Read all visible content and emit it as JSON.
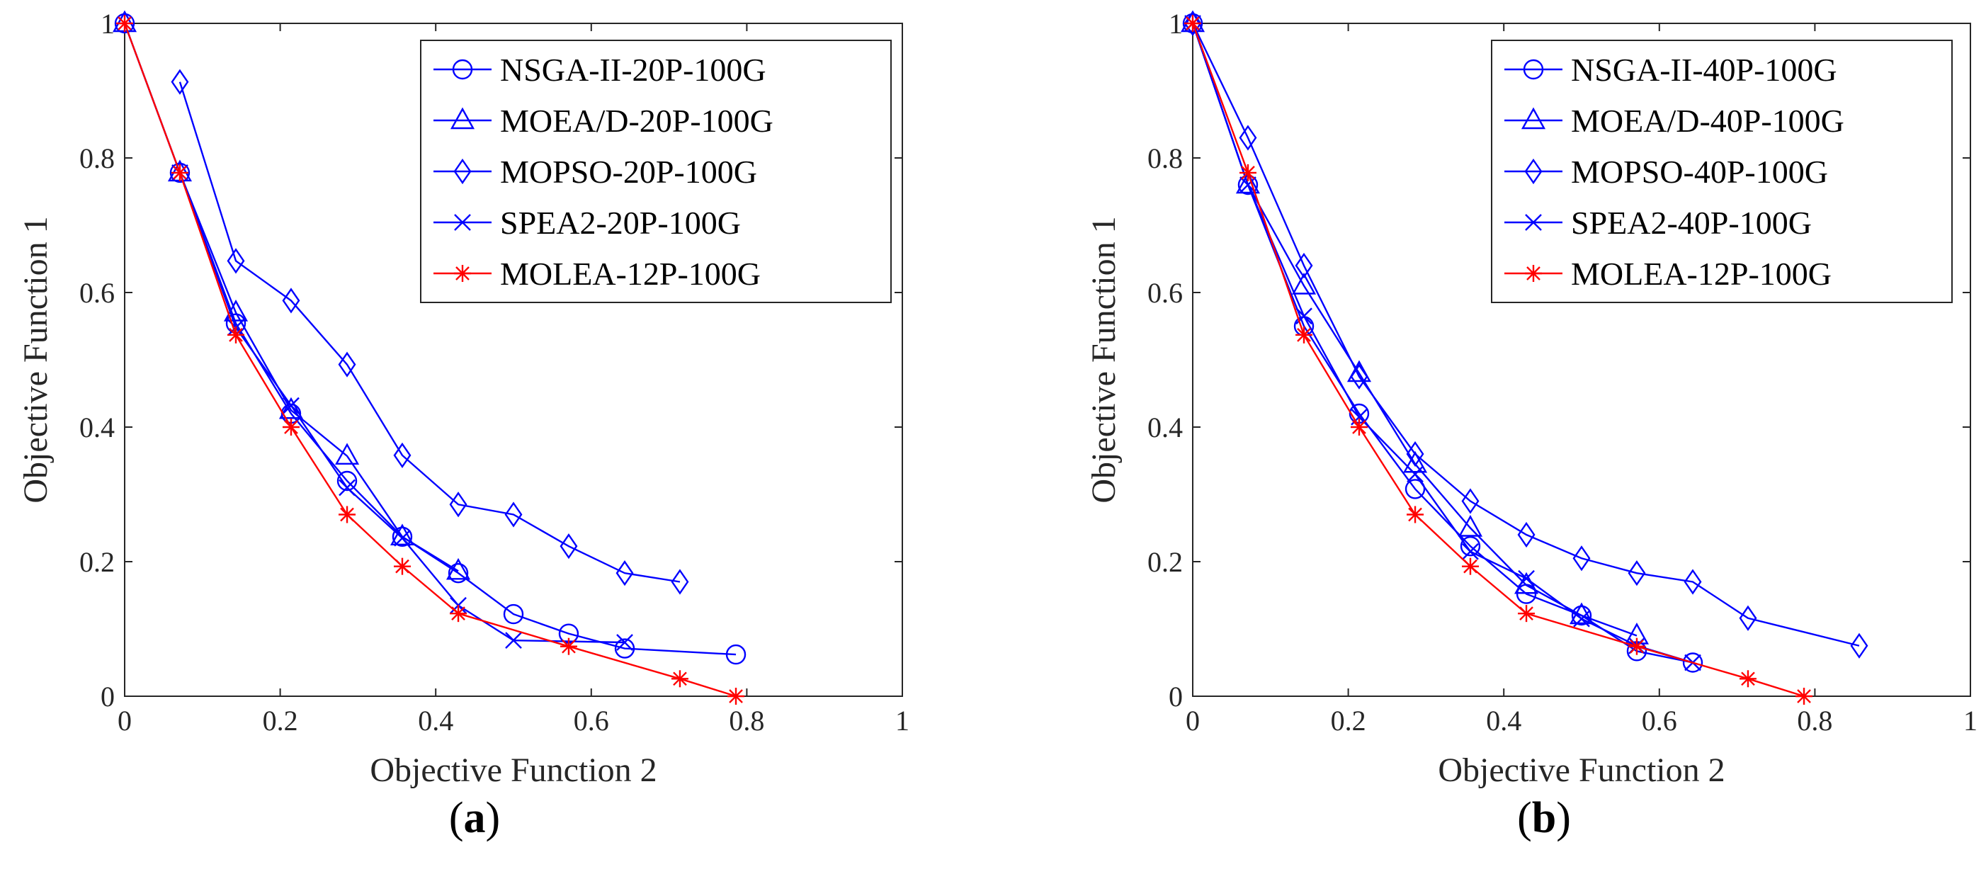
{
  "figure": {
    "colors": {
      "blue": "#0000ff",
      "red": "#ff0000",
      "axis": "#262626"
    }
  },
  "chart_data": [
    {
      "type": "line",
      "caption_label": "a",
      "xlabel": "Objective Function 2",
      "ylabel": "Objective Function 1",
      "xlim": [
        0,
        1
      ],
      "ylim": [
        0,
        1
      ],
      "xticks": [
        0,
        0.2,
        0.4,
        0.6,
        0.8,
        1
      ],
      "yticks": [
        0,
        0.2,
        0.4,
        0.6,
        0.8,
        1
      ],
      "xtick_labels": [
        "0",
        "0.2",
        "0.4",
        "0.6",
        "0.8",
        "1"
      ],
      "ytick_labels": [
        "0",
        "0.2",
        "0.4",
        "0.6",
        "0.8",
        "1"
      ],
      "legend_position": "top-right",
      "series": [
        {
          "name": "NSGA-II-20P-100G",
          "marker": "circle",
          "color": "#0000ff",
          "x": [
            0,
            0.071,
            0.143,
            0.214,
            0.286,
            0.357,
            0.429,
            0.5,
            0.571,
            0.643,
            0.786
          ],
          "y": [
            1,
            0.778,
            0.554,
            0.42,
            0.32,
            0.237,
            0.183,
            0.122,
            0.093,
            0.071,
            0.062
          ]
        },
        {
          "name": "MOEA/D-20P-100G",
          "marker": "triangle",
          "color": "#0000ff",
          "x": [
            0,
            0.071,
            0.143,
            0.214,
            0.286,
            0.357,
            0.429
          ],
          "y": [
            1,
            0.778,
            0.57,
            0.425,
            0.357,
            0.237,
            0.186
          ]
        },
        {
          "name": "MOPSO-20P-100G",
          "marker": "diamond",
          "color": "#0000ff",
          "x": [
            0.071,
            0.143,
            0.214,
            0.286,
            0.357,
            0.429,
            0.5,
            0.571,
            0.643,
            0.714
          ],
          "y": [
            0.913,
            0.647,
            0.588,
            0.493,
            0.358,
            0.285,
            0.27,
            0.223,
            0.183,
            0.17
          ]
        },
        {
          "name": "SPEA2-20P-100G",
          "marker": "x",
          "color": "#0000ff",
          "x": [
            0.071,
            0.143,
            0.214,
            0.286,
            0.357,
            0.429,
            0.5,
            0.643
          ],
          "y": [
            0.778,
            0.548,
            0.432,
            0.31,
            0.235,
            0.135,
            0.083,
            0.08
          ]
        },
        {
          "name": "MOLEA-12P-100G",
          "marker": "asterisk",
          "color": "#ff0000",
          "x": [
            0,
            0.071,
            0.143,
            0.214,
            0.286,
            0.357,
            0.429,
            0.571,
            0.714,
            0.786
          ],
          "y": [
            1,
            0.778,
            0.537,
            0.4,
            0.27,
            0.193,
            0.123,
            0.074,
            0.026,
            0
          ]
        }
      ]
    },
    {
      "type": "line",
      "caption_label": "b",
      "xlabel": "Objective Function 2",
      "ylabel": "Objective Function 1",
      "xlim": [
        0,
        1
      ],
      "ylim": [
        0,
        1
      ],
      "xticks": [
        0,
        0.2,
        0.4,
        0.6,
        0.8,
        1
      ],
      "yticks": [
        0,
        0.2,
        0.4,
        0.6,
        0.8,
        1
      ],
      "xtick_labels": [
        "0",
        "0.2",
        "0.4",
        "0.6",
        "0.8",
        "1"
      ],
      "ytick_labels": [
        "0",
        "0.2",
        "0.4",
        "0.6",
        "0.8",
        "1"
      ],
      "legend_position": "top-right",
      "series": [
        {
          "name": "NSGA-II-40P-100G",
          "marker": "circle",
          "color": "#0000ff",
          "x": [
            0,
            0.071,
            0.143,
            0.214,
            0.286,
            0.357,
            0.429,
            0.5,
            0.571,
            0.643
          ],
          "y": [
            1,
            0.76,
            0.55,
            0.42,
            0.308,
            0.223,
            0.152,
            0.12,
            0.067,
            0.05
          ]
        },
        {
          "name": "MOEA/D-40P-100G",
          "marker": "triangle",
          "color": "#0000ff",
          "x": [
            0,
            0.071,
            0.143,
            0.214,
            0.286,
            0.357,
            0.429,
            0.5,
            0.571
          ],
          "y": [
            1,
            0.76,
            0.61,
            0.48,
            0.345,
            0.25,
            0.165,
            0.12,
            0.09
          ]
        },
        {
          "name": "MOPSO-40P-100G",
          "marker": "diamond",
          "color": "#0000ff",
          "x": [
            0,
            0.071,
            0.143,
            0.214,
            0.286,
            0.357,
            0.429,
            0.5,
            0.571,
            0.643,
            0.714,
            0.857
          ],
          "y": [
            1,
            0.83,
            0.64,
            0.475,
            0.36,
            0.29,
            0.24,
            0.205,
            0.183,
            0.17,
            0.116,
            0.075
          ]
        },
        {
          "name": "SPEA2-40P-100G",
          "marker": "x",
          "color": "#0000ff",
          "x": [
            0,
            0.071,
            0.143,
            0.214,
            0.286,
            0.357,
            0.429,
            0.5,
            0.571,
            0.643
          ],
          "y": [
            1,
            0.76,
            0.565,
            0.415,
            0.33,
            0.215,
            0.175,
            0.115,
            0.075,
            0.05
          ]
        },
        {
          "name": "MOLEA-12P-100G",
          "marker": "asterisk",
          "color": "#ff0000",
          "x": [
            0,
            0.071,
            0.143,
            0.214,
            0.286,
            0.357,
            0.429,
            0.571,
            0.714,
            0.786
          ],
          "y": [
            1,
            0.778,
            0.537,
            0.4,
            0.27,
            0.193,
            0.123,
            0.074,
            0.026,
            0
          ]
        }
      ]
    }
  ]
}
